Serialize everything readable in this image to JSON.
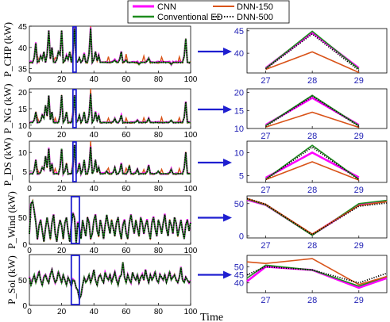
{
  "legend": {
    "items": [
      {
        "label": "CNN",
        "color": "#ff00ff",
        "dash": "solid"
      },
      {
        "label": "DNN-150",
        "color": "#d95319",
        "dash": "solid"
      },
      {
        "label": "Conventional ED",
        "color": "#1e8c1e",
        "dash": "solid"
      },
      {
        "label": "DNN-500",
        "color": "#000000",
        "dash": "dotted"
      }
    ]
  },
  "xlabel": "Time",
  "chart_data": [
    {
      "type": "line",
      "ylabel": "P_CHP (kW)",
      "xlim": [
        0,
        100
      ],
      "ylim": [
        34,
        45
      ],
      "xticks": [
        0,
        20,
        40,
        60,
        80,
        100
      ],
      "yticks": [
        35,
        40,
        45
      ],
      "base": 36.5,
      "spikes": [
        [
          4,
          41
        ],
        [
          7,
          38
        ],
        [
          9,
          39
        ],
        [
          12,
          44
        ],
        [
          14,
          40
        ],
        [
          18,
          39
        ],
        [
          20,
          44
        ],
        [
          23,
          38
        ],
        [
          25,
          39
        ],
        [
          28,
          44.5
        ],
        [
          31,
          37.5
        ],
        [
          34,
          38.5
        ],
        [
          38,
          44.5
        ],
        [
          41,
          39
        ],
        [
          43,
          38
        ],
        [
          53,
          37
        ],
        [
          57,
          39
        ],
        [
          60,
          37
        ],
        [
          68,
          36
        ],
        [
          74,
          37.5
        ],
        [
          88,
          36
        ],
        [
          97,
          42
        ]
      ],
      "zoom_window": [
        27,
        29
      ],
      "zoom": {
        "x": [
          27,
          28,
          29
        ],
        "xticks": [
          27,
          28,
          29
        ],
        "ylim": [
          35.6,
          45.5
        ],
        "yticks": [
          40,
          45
        ],
        "series": [
          {
            "name": "CNN",
            "values": [
              36.7,
              44.6,
              36.7
            ]
          },
          {
            "name": "DNN-150",
            "values": [
              36.4,
              40.3,
              35.7
            ]
          },
          {
            "name": "Conventional ED",
            "values": [
              36.6,
              44.9,
              36.5
            ]
          },
          {
            "name": "DNN-500",
            "values": [
              36.5,
              44.3,
              36.2
            ]
          }
        ]
      }
    },
    {
      "type": "line",
      "ylabel": "P_NG (kW)",
      "xlim": [
        0,
        100
      ],
      "ylim": [
        9,
        21
      ],
      "xticks": [
        0,
        20,
        40,
        60,
        80,
        100
      ],
      "yticks": [
        10,
        15,
        20
      ],
      "base": 10.8,
      "spikes": [
        [
          4,
          14
        ],
        [
          8,
          13
        ],
        [
          10,
          16
        ],
        [
          12,
          19
        ],
        [
          14,
          14
        ],
        [
          20,
          19
        ],
        [
          23,
          14
        ],
        [
          28,
          19
        ],
        [
          31,
          13
        ],
        [
          34,
          14
        ],
        [
          38,
          19.5
        ],
        [
          41,
          14
        ],
        [
          43,
          13
        ],
        [
          53,
          12
        ],
        [
          57,
          13
        ],
        [
          67,
          11.5
        ],
        [
          74,
          12
        ],
        [
          88,
          11.5
        ],
        [
          97,
          17
        ]
      ],
      "zoom_window": [
        27,
        29
      ],
      "zoom": {
        "x": [
          27,
          28,
          29
        ],
        "xticks": [
          27,
          28,
          29
        ],
        "ylim": [
          10,
          21
        ],
        "yticks": [
          10,
          15,
          20
        ],
        "series": [
          {
            "name": "CNN",
            "values": [
              11.0,
              18.5,
              11.0
            ]
          },
          {
            "name": "DNN-150",
            "values": [
              10.4,
              14.5,
              10.3
            ]
          },
          {
            "name": "Conventional ED",
            "values": [
              10.8,
              19.2,
              10.8
            ]
          },
          {
            "name": "DNN-500",
            "values": [
              10.6,
              18.9,
              10.6
            ]
          }
        ]
      }
    },
    {
      "type": "line",
      "ylabel": "P_DS (kW)",
      "xlim": [
        0,
        100
      ],
      "ylim": [
        2,
        13
      ],
      "xticks": [
        0,
        20,
        40,
        60,
        80,
        100
      ],
      "yticks": [
        5,
        10
      ],
      "base": 4.3,
      "spikes": [
        [
          4,
          8
        ],
        [
          8,
          6
        ],
        [
          10,
          9
        ],
        [
          12,
          11
        ],
        [
          14,
          7
        ],
        [
          20,
          11
        ],
        [
          23,
          7
        ],
        [
          28,
          12
        ],
        [
          31,
          7
        ],
        [
          34,
          8
        ],
        [
          38,
          11.5
        ],
        [
          41,
          8
        ],
        [
          43,
          6
        ],
        [
          48,
          5
        ],
        [
          53,
          6
        ],
        [
          57,
          7
        ],
        [
          62,
          6.5
        ],
        [
          67,
          5.5
        ],
        [
          74,
          6.5
        ],
        [
          80,
          5
        ],
        [
          88,
          5.5
        ],
        [
          97,
          10
        ]
      ],
      "zoom_window": [
        27,
        29
      ],
      "zoom": {
        "x": [
          27,
          28,
          29
        ],
        "xticks": [
          27,
          28,
          29
        ],
        "ylim": [
          3.5,
          12.5
        ],
        "yticks": [
          5,
          10
        ],
        "series": [
          {
            "name": "CNN",
            "values": [
              4.5,
              10.0,
              4.6
            ]
          },
          {
            "name": "DNN-150",
            "values": [
              4.1,
              8.0,
              4.0
            ]
          },
          {
            "name": "Conventional ED",
            "values": [
              4.2,
              11.6,
              4.2
            ]
          },
          {
            "name": "DNN-500",
            "values": [
              4.1,
              11.2,
              4.1
            ]
          }
        ]
      }
    },
    {
      "type": "line",
      "ylabel": "P_Wind (kW)",
      "xlim": [
        0,
        100
      ],
      "ylim": [
        0,
        90
      ],
      "xticks": [
        0,
        20,
        40,
        60,
        80,
        100
      ],
      "yticks": [
        0,
        50
      ],
      "values": [
        20,
        75,
        80,
        62,
        40,
        10,
        35,
        45,
        25,
        5,
        30,
        50,
        30,
        10,
        40,
        55,
        20,
        5,
        30,
        45,
        35,
        10,
        40,
        50,
        25,
        5,
        35,
        58,
        48,
        2,
        40,
        30,
        10,
        45,
        30,
        15,
        50,
        40,
        10,
        20,
        45,
        55,
        25,
        15,
        45,
        30,
        10,
        35,
        55,
        35,
        20,
        45,
        30,
        15,
        40,
        50,
        25,
        10,
        35,
        45,
        20,
        10,
        40,
        55,
        35,
        20,
        45,
        30,
        15,
        50,
        40,
        20,
        35,
        45,
        25,
        10,
        40,
        50,
        30,
        15,
        45,
        35,
        20,
        40,
        55,
        30,
        15,
        45,
        35,
        20,
        50,
        40,
        15,
        30,
        45,
        25,
        10,
        35,
        45,
        25,
        40
      ],
      "zoom_window": [
        26,
        31
      ],
      "zoom": {
        "x": [
          26.6,
          27,
          28,
          29,
          29.6
        ],
        "xticks": [
          27,
          28,
          29
        ],
        "ylim": [
          -3,
          62
        ],
        "yticks": [
          0,
          50
        ],
        "series": [
          {
            "name": "CNN",
            "values": [
              56,
              48,
              2,
              48,
              54
            ]
          },
          {
            "name": "DNN-150",
            "values": [
              58,
              49,
              3,
              47,
              53
            ]
          },
          {
            "name": "Conventional ED",
            "values": [
              57,
              48,
              1,
              50,
              55
            ]
          },
          {
            "name": "DNN-500",
            "values": [
              58,
              49,
              2,
              46,
              51
            ]
          }
        ]
      }
    },
    {
      "type": "line",
      "ylabel": "P_Sol (kW)",
      "xlim": [
        0,
        100
      ],
      "ylim": [
        0,
        100
      ],
      "xticks": [
        0,
        20,
        40,
        60,
        80,
        100
      ],
      "yticks": [
        0,
        50
      ],
      "values": [
        55,
        40,
        50,
        60,
        45,
        55,
        65,
        50,
        40,
        55,
        60,
        50,
        45,
        60,
        70,
        55,
        45,
        50,
        65,
        55,
        45,
        60,
        50,
        40,
        55,
        48,
        38,
        50,
        48,
        35,
        30,
        12,
        20,
        40,
        55,
        45,
        50,
        60,
        45,
        55,
        70,
        50,
        40,
        55,
        60,
        50,
        45,
        65,
        55,
        50,
        60,
        45,
        55,
        65,
        50,
        40,
        55,
        60,
        85,
        55,
        45,
        60,
        50,
        45,
        65,
        55,
        50,
        60,
        45,
        55,
        60,
        50,
        70,
        55,
        45,
        60,
        50,
        55,
        65,
        50,
        45,
        60,
        55,
        50,
        60,
        45,
        55,
        65,
        50,
        55,
        60,
        50,
        45,
        55,
        75,
        50,
        45,
        55,
        50,
        45,
        48
      ],
      "zoom_window": [
        26,
        31
      ],
      "zoom": {
        "x": [
          26.6,
          27,
          28,
          29,
          29.6
        ],
        "xticks": [
          27,
          28,
          29
        ],
        "ylim": [
          34,
          57
        ],
        "yticks": [
          40,
          45,
          50
        ],
        "series": [
          {
            "name": "CNN",
            "values": [
              41,
              50,
              48,
              37,
              43
            ]
          },
          {
            "name": "DNN-150",
            "values": [
              53,
              52,
              55,
              39,
              44
            ]
          },
          {
            "name": "Conventional ED",
            "values": [
              43,
              51,
              48,
              38,
              44
            ]
          },
          {
            "name": "DNN-500",
            "values": [
              45,
              50,
              48,
              40,
              46
            ]
          }
        ]
      }
    }
  ]
}
